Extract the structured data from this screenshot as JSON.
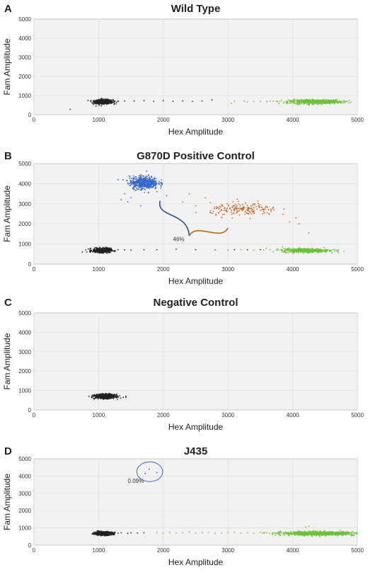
{
  "figure": {
    "colors": {
      "plot_background": "#f2f2f2",
      "grid": "#dddddd",
      "frame": "#bbbbbb",
      "text": "#222222"
    }
  },
  "chart_data": [
    {
      "type": "scatter",
      "panel_letter": "A",
      "title": "Wild Type",
      "xlabel": "Hex Amplitude",
      "ylabel": "Fam Amplitude",
      "xlim": [
        0,
        5000
      ],
      "ylim": [
        0,
        5000
      ],
      "x_ticks": [
        0,
        1000,
        2000,
        3000,
        4000,
        5000
      ],
      "y_ticks": [
        0,
        1000,
        2000,
        3000,
        4000,
        5000
      ],
      "grid": true,
      "clusters": [
        {
          "color": "#222222",
          "center": [
            1080,
            680
          ],
          "spread": [
            70,
            55
          ],
          "count": 600
        },
        {
          "color": "#6fbf3a",
          "center": [
            4350,
            680
          ],
          "spread": [
            200,
            55
          ],
          "count": 600
        }
      ],
      "points": [
        {
          "color": "#222222",
          "xy": [
            [
              560,
              280
            ],
            [
              910,
              580
            ],
            [
              960,
              450
            ],
            [
              1200,
              700
            ],
            [
              1250,
              710
            ],
            [
              1300,
              690
            ],
            [
              1400,
              720
            ],
            [
              1550,
              720
            ],
            [
              1700,
              740
            ],
            [
              1850,
              700
            ],
            [
              2000,
              740
            ],
            [
              2150,
              700
            ],
            [
              2300,
              720
            ],
            [
              2450,
              690
            ],
            [
              2600,
              720
            ],
            [
              2750,
              780
            ]
          ]
        },
        {
          "color": "#6fbf3a",
          "xy": [
            [
              3050,
              600
            ],
            [
              3100,
              700
            ],
            [
              3250,
              700
            ],
            [
              3300,
              660
            ],
            [
              3400,
              690
            ],
            [
              3500,
              700
            ],
            [
              3600,
              680
            ],
            [
              3650,
              700
            ],
            [
              3700,
              710
            ],
            [
              3750,
              690
            ],
            [
              3800,
              700
            ],
            [
              4800,
              680
            ],
            [
              4850,
              700
            ],
            [
              4900,
              650
            ]
          ]
        }
      ],
      "annotations": []
    },
    {
      "type": "scatter",
      "panel_letter": "B",
      "title": "G870D Positive Control",
      "xlabel": "Hex Amplitude",
      "ylabel": "Fam Amplitude",
      "xlim": [
        0,
        5000
      ],
      "ylim": [
        0,
        5000
      ],
      "x_ticks": [
        0,
        1000,
        2000,
        3000,
        4000,
        5000
      ],
      "y_ticks": [
        0,
        1000,
        2000,
        3000,
        4000,
        5000
      ],
      "grid": true,
      "clusters": [
        {
          "color": "#222222",
          "center": [
            1050,
            680
          ],
          "spread": [
            70,
            55
          ],
          "count": 500
        },
        {
          "color": "#6fbf3a",
          "center": [
            4200,
            680
          ],
          "spread": [
            180,
            50
          ],
          "count": 500
        },
        {
          "color": "#3366cc",
          "center": [
            1700,
            4050
          ],
          "spread": [
            110,
            160
          ],
          "count": 500
        },
        {
          "color": "#cc6622",
          "center": [
            3250,
            2700
          ],
          "spread": [
            260,
            160
          ],
          "count": 180
        }
      ],
      "points": [
        {
          "color": "#222222",
          "xy": [
            [
              750,
              600
            ],
            [
              800,
              700
            ],
            [
              1300,
              720
            ],
            [
              1400,
              710
            ],
            [
              1500,
              700
            ],
            [
              1700,
              720
            ],
            [
              1900,
              720
            ],
            [
              2200,
              740
            ],
            [
              2500,
              720
            ],
            [
              2800,
              720
            ],
            [
              3100,
              720
            ],
            [
              3300,
              720
            ],
            [
              3500,
              720
            ]
          ]
        },
        {
          "color": "#6fbf3a",
          "xy": [
            [
              2800,
              700
            ],
            [
              3000,
              700
            ],
            [
              3200,
              720
            ],
            [
              3400,
              690
            ],
            [
              3550,
              700
            ],
            [
              3650,
              720
            ],
            [
              3750,
              690
            ],
            [
              4600,
              680
            ],
            [
              4700,
              720
            ]
          ]
        },
        {
          "color": "#3366cc",
          "xy": [
            [
              1400,
              3500
            ],
            [
              1350,
              3200
            ],
            [
              1450,
              3100
            ],
            [
              1500,
              3300
            ],
            [
              1650,
              2900
            ],
            [
              2050,
              3400
            ],
            [
              1300,
              4200
            ],
            [
              1550,
              3700
            ],
            [
              1900,
              3600
            ]
          ]
        },
        {
          "color": "#cc6622",
          "xy": [
            [
              2400,
              3500
            ],
            [
              2650,
              3300
            ],
            [
              2300,
              3100
            ],
            [
              2500,
              2900
            ],
            [
              2850,
              2800
            ],
            [
              4050,
              2300
            ],
            [
              4100,
              2000
            ],
            [
              3950,
              2100
            ],
            [
              4250,
              1550
            ]
          ]
        }
      ],
      "annotations": [
        {
          "text": "46%",
          "x": 2150,
          "y": 1150
        },
        {
          "shape": "curly-brace",
          "left_color": "#2a4fa8",
          "right_color": "#b36a1c",
          "from": [
            1950,
            3150
          ],
          "mid": [
            2400,
            1400
          ],
          "to": [
            3000,
            1800
          ]
        }
      ]
    },
    {
      "type": "scatter",
      "panel_letter": "C",
      "title": "Negative Control",
      "xlabel": "Hex Amplitude",
      "ylabel": "Fam Amplitude",
      "xlim": [
        0,
        5000
      ],
      "ylim": [
        0,
        5000
      ],
      "x_ticks": [
        0,
        1000,
        2000,
        3000,
        4000,
        5000
      ],
      "y_ticks": [
        0,
        1000,
        2000,
        3000,
        4000,
        5000
      ],
      "grid": true,
      "clusters": [
        {
          "color": "#222222",
          "center": [
            1100,
            700
          ],
          "spread": [
            75,
            55
          ],
          "count": 700
        }
      ],
      "points": [
        {
          "color": "#222222",
          "xy": [
            [
              1380,
              650
            ],
            [
              1420,
              700
            ],
            [
              850,
              700
            ],
            [
              900,
              760
            ]
          ]
        }
      ],
      "annotations": []
    },
    {
      "type": "scatter",
      "panel_letter": "D",
      "title": "J435",
      "xlabel": "Hex Amplitude",
      "ylabel": "Fam Amplitude",
      "xlim": [
        0,
        5000
      ],
      "ylim": [
        0,
        5000
      ],
      "x_ticks": [
        0,
        1000,
        2000,
        3000,
        4000,
        5000
      ],
      "y_ticks": [
        0,
        1000,
        2000,
        3000,
        4000,
        5000
      ],
      "grid": true,
      "clusters": [
        {
          "color": "#222222",
          "center": [
            1080,
            680
          ],
          "spread": [
            70,
            50
          ],
          "count": 600
        },
        {
          "color": "#6fbf3a",
          "center": [
            4400,
            680
          ],
          "spread": [
            280,
            55
          ],
          "count": 900
        }
      ],
      "points": [
        {
          "color": "#222222",
          "xy": [
            [
              1300,
              700
            ],
            [
              1350,
              720
            ],
            [
              1450,
              690
            ],
            [
              1500,
              720
            ],
            [
              1600,
              700
            ],
            [
              1700,
              720
            ]
          ]
        },
        {
          "color": "#6fbf3a",
          "xy": [
            [
              1900,
              720
            ],
            [
              2000,
              700
            ],
            [
              2100,
              740
            ],
            [
              2200,
              700
            ],
            [
              2300,
              720
            ],
            [
              2400,
              760
            ],
            [
              2500,
              700
            ],
            [
              2600,
              720
            ],
            [
              2700,
              740
            ],
            [
              2800,
              690
            ],
            [
              2900,
              700
            ],
            [
              3000,
              720
            ],
            [
              3100,
              740
            ],
            [
              3200,
              700
            ],
            [
              3300,
              720
            ],
            [
              3400,
              700
            ],
            [
              3500,
              740
            ],
            [
              3600,
              720
            ],
            [
              3700,
              690
            ],
            [
              3800,
              720
            ],
            [
              3900,
              700
            ],
            [
              4200,
              1050
            ],
            [
              4250,
              1100
            ]
          ]
        },
        {
          "color": "#555555",
          "xy": [
            [
              1780,
              4400
            ],
            [
              1720,
              4150
            ],
            [
              1900,
              4200
            ]
          ]
        }
      ],
      "annotations": [
        {
          "text": "0.09%",
          "x": 1450,
          "y": 3600
        },
        {
          "shape": "ellipse",
          "color": "#4466bb",
          "center": [
            1790,
            4250
          ],
          "radius": [
            200,
            570
          ]
        }
      ]
    }
  ]
}
